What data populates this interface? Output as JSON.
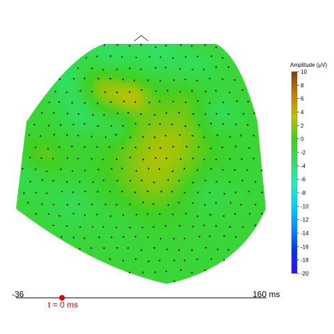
{
  "chart_data": {
    "type": "heatmap",
    "title": "",
    "colorbar": {
      "title": "Amplitude (µV)",
      "min": -20,
      "max": 10,
      "ticks": [
        10,
        8,
        6,
        4,
        2,
        0,
        -2,
        -4,
        -6,
        -8,
        -10,
        -12,
        -14,
        -16,
        -18,
        -20
      ]
    },
    "timeline": {
      "start_label": "-36",
      "end_label": "160 ms",
      "start_ms": -36,
      "end_ms": 160,
      "current_ms": 0,
      "current_label": "t = 0 ms"
    },
    "baseline_uV": -1.2,
    "blobs_uV": [
      {
        "x": -0.3,
        "y": 0.6,
        "amp": 3.8,
        "r": 0.14
      },
      {
        "x": -0.05,
        "y": 0.55,
        "amp": 3.0,
        "r": 0.1
      },
      {
        "x": 0.28,
        "y": 0.2,
        "amp": 2.6,
        "r": 0.24
      },
      {
        "x": 0.0,
        "y": 0.05,
        "amp": 1.6,
        "r": 0.28
      },
      {
        "x": -0.78,
        "y": 0.05,
        "amp": 2.2,
        "r": 0.12
      },
      {
        "x": 0.1,
        "y": -0.2,
        "amp": 1.6,
        "r": 0.2
      },
      {
        "x": 0.38,
        "y": 0.55,
        "amp": 1.0,
        "r": 0.12
      },
      {
        "x": -0.25,
        "y": 0.9,
        "amp": -2.4,
        "r": 0.14
      },
      {
        "x": 0.15,
        "y": 0.92,
        "amp": -2.2,
        "r": 0.14
      },
      {
        "x": 0.45,
        "y": 0.78,
        "amp": -1.6,
        "r": 0.12
      },
      {
        "x": -0.45,
        "y": 0.42,
        "amp": -2.8,
        "r": 0.12
      },
      {
        "x": -0.58,
        "y": 0.68,
        "amp": -2.4,
        "r": 0.12
      },
      {
        "x": -0.2,
        "y": 0.3,
        "amp": -1.8,
        "r": 0.1
      },
      {
        "x": -0.88,
        "y": -0.1,
        "amp": -1.6,
        "r": 0.12
      },
      {
        "x": -0.55,
        "y": -0.35,
        "amp": -1.4,
        "r": 0.14
      },
      {
        "x": 0.62,
        "y": 0.4,
        "amp": -2.0,
        "r": 0.12
      },
      {
        "x": 0.55,
        "y": -0.25,
        "amp": -1.2,
        "r": 0.14
      },
      {
        "x": -0.15,
        "y": -0.48,
        "amp": -0.8,
        "r": 0.14
      }
    ],
    "colors": {
      "scale": [
        "#3010ff",
        "#0030ff",
        "#0090ff",
        "#00d0ff",
        "#20f0c0",
        "#30e060",
        "#40d020",
        "#c0c000",
        "#c08000",
        "#804000"
      ],
      "timeline_marker": "#e00000"
    }
  }
}
